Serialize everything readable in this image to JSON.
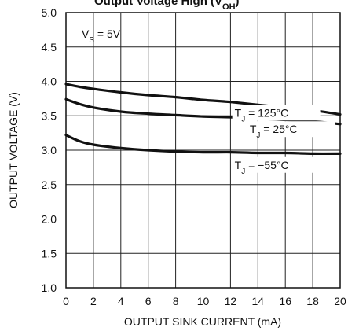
{
  "chart_data": {
    "type": "line",
    "title_fragment": "Output Voltage High (V",
    "title_fragment_sub": "OH",
    "title_fragment_end": ")",
    "xlabel": "OUTPUT SINK CURRENT (mA)",
    "ylabel": "OUTPUT VOLTAGE (V)",
    "xlim": [
      0,
      20
    ],
    "ylim": [
      1.0,
      5.0
    ],
    "xticks": [
      "0",
      "2",
      "4",
      "6",
      "8",
      "10",
      "12",
      "14",
      "16",
      "18",
      "20"
    ],
    "yticks": [
      "1.0",
      "1.5",
      "2.0",
      "2.5",
      "3.0",
      "3.5",
      "4.0",
      "4.5",
      "5.0"
    ],
    "grid": true,
    "condition": {
      "main": "V",
      "sub": "S",
      "rest": " = 5V"
    },
    "series": [
      {
        "name": "TJ = 125°C",
        "label_main": "T",
        "label_sub": "J",
        "label_rest": " = 125°C",
        "x": [
          0,
          1,
          2,
          4,
          6,
          8,
          10,
          12,
          14,
          16,
          18,
          20
        ],
        "y": [
          3.96,
          3.92,
          3.89,
          3.84,
          3.8,
          3.77,
          3.73,
          3.7,
          3.66,
          3.62,
          3.58,
          3.52
        ]
      },
      {
        "name": "TJ = 25°C",
        "label_main": "T",
        "label_sub": "J",
        "label_rest": " = 25°C",
        "x": [
          0,
          1,
          2,
          4,
          6,
          8,
          10,
          12,
          14,
          16,
          18,
          20
        ],
        "y": [
          3.74,
          3.67,
          3.62,
          3.56,
          3.53,
          3.51,
          3.49,
          3.48,
          3.46,
          3.44,
          3.42,
          3.38
        ]
      },
      {
        "name": "TJ = -55°C",
        "label_main": "T",
        "label_sub": "J",
        "label_rest": " = −55°C",
        "x": [
          0,
          1,
          2,
          4,
          6,
          8,
          10,
          12,
          14,
          16,
          18,
          20
        ],
        "y": [
          3.22,
          3.13,
          3.08,
          3.03,
          3.0,
          2.98,
          2.97,
          2.97,
          2.96,
          2.96,
          2.95,
          2.95
        ]
      }
    ]
  },
  "colors": {
    "line": "#111111",
    "grid": "#222222",
    "background": "#ffffff"
  }
}
